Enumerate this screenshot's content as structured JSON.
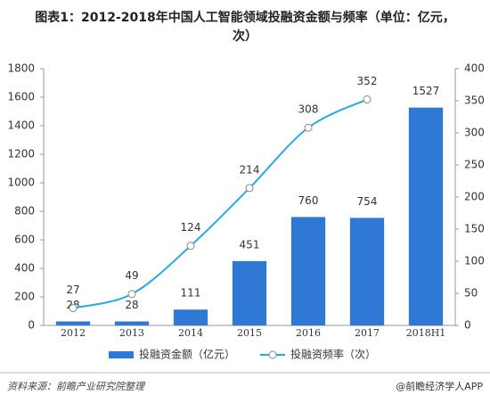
{
  "chart_data": {
    "type": "bar_line",
    "title": "图表1：2012-2018年中国人工智能领域投融资金额与频率（单位：亿元，",
    "title_line2": "次）",
    "categories": [
      "2012",
      "2013",
      "2014",
      "2015",
      "2016",
      "2017",
      "2018H1"
    ],
    "series": [
      {
        "name": "投融资金额（亿元）",
        "color": "#2f78d6",
        "type": "bar",
        "values": [
          28,
          28,
          111,
          451,
          760,
          754,
          1527
        ]
      },
      {
        "name": "投融资频率（次）",
        "color": "#2aa8e0",
        "type": "line",
        "axis": "y2",
        "values": [
          27,
          49,
          124,
          214,
          308,
          352,
          null
        ]
      }
    ],
    "ylim": [
      0,
      1800
    ],
    "yticks": [
      0,
      200,
      400,
      600,
      800,
      1000,
      1200,
      1400,
      1600,
      1800
    ],
    "y2lim": [
      0,
      400
    ],
    "y2ticks": [
      0,
      50,
      100,
      150,
      200,
      250,
      300,
      350,
      400
    ],
    "source": "资料来源：前瞻产业研究院整理",
    "brand": "@前瞻经济学人APP"
  }
}
